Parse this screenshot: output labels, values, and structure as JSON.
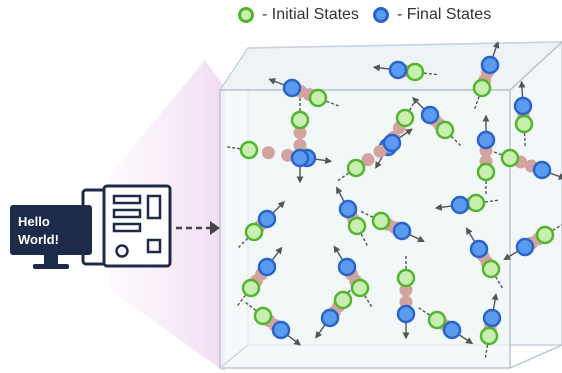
{
  "legend": {
    "initial_label": "- Initial States",
    "final_label": "- Final States",
    "initial_color": "#52b52d",
    "final_color": "#2f6fd6"
  },
  "computer": {
    "screen_text_line1": "Hello",
    "screen_text_line2": "World!"
  },
  "colors": {
    "box_edge": "#c5cdd6",
    "box_face": "#eef3f6",
    "glow": "#f3e3f5",
    "intermediate": "#d4a3a0",
    "device": "#1e2a4a"
  }
}
